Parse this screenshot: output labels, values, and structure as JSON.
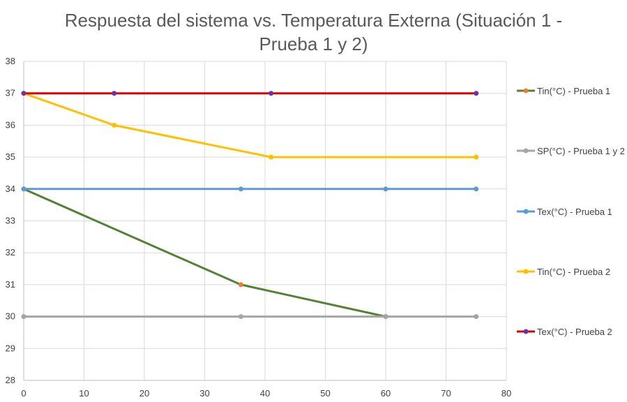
{
  "chart_data": {
    "type": "line",
    "title_line1": "Respuesta del sistema vs. Temperatura Externa (Situación 1 -",
    "title_line2": "Prueba 1 y 2)",
    "xlim": [
      0,
      80
    ],
    "ylim": [
      28,
      38
    ],
    "x_ticks": [
      0,
      10,
      20,
      30,
      40,
      50,
      60,
      70,
      80
    ],
    "y_ticks": [
      28,
      29,
      30,
      31,
      32,
      33,
      34,
      35,
      36,
      37,
      38
    ],
    "grid": true,
    "legend_position": "right",
    "series": [
      {
        "name": "Tin(°C) - Prueba 1",
        "color": "#548235",
        "marker_color": "#ED7D31",
        "points": [
          [
            0,
            34
          ],
          [
            36,
            31
          ],
          [
            60,
            30
          ]
        ]
      },
      {
        "name": "SP(°C) - Prueba 1 y 2",
        "color": "#A5A5A5",
        "marker_color": "#A5A5A5",
        "points": [
          [
            0,
            30
          ],
          [
            36,
            30
          ],
          [
            60,
            30
          ],
          [
            75,
            30
          ]
        ]
      },
      {
        "name": "Tex(°C) - Prueba 1",
        "color": "#5B9BD5",
        "marker_color": "#5B9BD5",
        "points": [
          [
            0,
            34
          ],
          [
            36,
            34
          ],
          [
            60,
            34
          ],
          [
            75,
            34
          ]
        ]
      },
      {
        "name": "Tin(°C) - Prueba 2",
        "color": "#FFC000",
        "marker_color": "#FFC000",
        "points": [
          [
            0,
            37
          ],
          [
            15,
            36
          ],
          [
            41,
            35
          ],
          [
            75,
            35
          ]
        ]
      },
      {
        "name": "Tex(°C) - Prueba 2",
        "color": "#E00000",
        "marker_color": "#7030A0",
        "points": [
          [
            0,
            37
          ],
          [
            15,
            37
          ],
          [
            41,
            37
          ],
          [
            75,
            37
          ]
        ]
      }
    ]
  }
}
